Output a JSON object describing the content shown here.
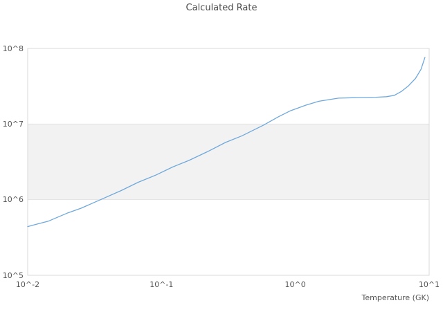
{
  "colors": {
    "line": "#6fa8dc",
    "band_fill": "#f2f2f2",
    "grid": "#e2e2e2",
    "frame": "#d9d9d9",
    "text": "#555555",
    "title_text": "#4a4a4a",
    "background": "#ffffff"
  },
  "chart_data": {
    "type": "line",
    "title": "Calculated Rate",
    "xlabel": "Temperature (GK)",
    "ylabel": "",
    "x_scale": "log",
    "y_scale": "log",
    "xlim": [
      0.01,
      10
    ],
    "ylim": [
      100000,
      100000000
    ],
    "grid": "horizontal-decades",
    "legend": "none",
    "x_ticks": [
      {
        "value": 0.01,
        "label": "10^-2"
      },
      {
        "value": 0.1,
        "label": "10^-1"
      },
      {
        "value": 1,
        "label": "10^0"
      },
      {
        "value": 10,
        "label": "10^1"
      }
    ],
    "y_ticks": [
      {
        "value": 100000,
        "label": "10^5"
      },
      {
        "value": 1000000,
        "label": "10^6"
      },
      {
        "value": 10000000,
        "label": "10^7"
      },
      {
        "value": 100000000,
        "label": "10^8"
      }
    ],
    "shaded_band": {
      "y_from": 1000000,
      "y_to": 10000000
    },
    "series": [
      {
        "name": "Calculated Rate",
        "x": [
          0.01,
          0.012,
          0.0143,
          0.02,
          0.025,
          0.035,
          0.05,
          0.067,
          0.09,
          0.121,
          0.16,
          0.22,
          0.3,
          0.4,
          0.58,
          0.75,
          0.92,
          1.2,
          1.5,
          2.1,
          3.0,
          4.0,
          4.8,
          5.5,
          6.2,
          7.0,
          7.9,
          8.7,
          9.3
        ],
        "y": [
          440000,
          480000,
          520000,
          670000,
          770000,
          1000000,
          1320000,
          1700000,
          2100000,
          2700000,
          3300000,
          4300000,
          5700000,
          7000000,
          9700000,
          12500000,
          15000000,
          17800000,
          20000000,
          22000000,
          22400000,
          22600000,
          23000000,
          24000000,
          27000000,
          32000000,
          40000000,
          53000000,
          76000000
        ]
      }
    ]
  }
}
